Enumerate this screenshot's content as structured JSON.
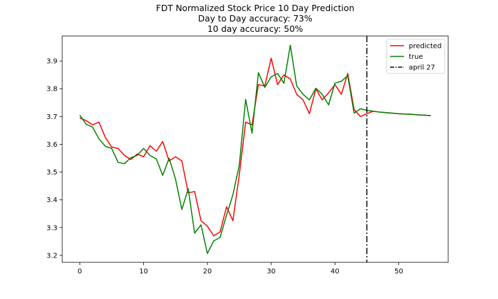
{
  "chart_data": {
    "type": "line",
    "title": [
      "FDT Normalized Stock Price 10 Day Prediction",
      "Day to Day accuracy: 73%",
      "10 day accuracy: 50%"
    ],
    "xlim": [
      -2.75,
      57.75
    ],
    "ylim": [
      3.175,
      3.99
    ],
    "xticks": [
      0,
      10,
      20,
      30,
      40,
      50
    ],
    "yticks": [
      3.2,
      3.3,
      3.4,
      3.5,
      3.6,
      3.7,
      3.8,
      3.9
    ],
    "grid": false,
    "legend_position": "upper-right",
    "series": [
      {
        "name": "predicted",
        "color": "#ff0000",
        "x": [
          0,
          1,
          2,
          3,
          4,
          5,
          6,
          7,
          8,
          9,
          10,
          11,
          12,
          13,
          14,
          15,
          16,
          17,
          18,
          19,
          20,
          21,
          22,
          23,
          24,
          25,
          26,
          27,
          28,
          29,
          30,
          31,
          32,
          33,
          34,
          35,
          36,
          37,
          38,
          39,
          40,
          41,
          42,
          43,
          44,
          45,
          46,
          47,
          48,
          49,
          50,
          51,
          52,
          53,
          54,
          55
        ],
        "y": [
          3.695,
          3.685,
          3.67,
          3.68,
          3.625,
          3.59,
          3.585,
          3.56,
          3.545,
          3.565,
          3.555,
          3.595,
          3.575,
          3.61,
          3.54,
          3.555,
          3.54,
          3.425,
          3.43,
          3.325,
          3.305,
          3.27,
          3.285,
          3.375,
          3.325,
          3.49,
          3.68,
          3.67,
          3.815,
          3.81,
          3.91,
          3.815,
          3.85,
          3.835,
          3.78,
          3.76,
          3.71,
          3.8,
          3.76,
          3.785,
          3.815,
          3.78,
          3.855,
          3.725,
          3.7,
          3.71,
          3.719,
          3.716,
          3.714,
          3.712,
          3.71,
          3.709,
          3.708,
          3.706,
          3.705,
          3.703
        ]
      },
      {
        "name": "true",
        "color": "#008000",
        "x": [
          0,
          1,
          2,
          3,
          4,
          5,
          6,
          7,
          8,
          9,
          10,
          11,
          12,
          13,
          14,
          15,
          16,
          17,
          18,
          19,
          20,
          21,
          22,
          23,
          24,
          25,
          26,
          27,
          28,
          29,
          30,
          31,
          32,
          33,
          34,
          35,
          36,
          37,
          38,
          39,
          40,
          41,
          42,
          43,
          44,
          45,
          46,
          47,
          48,
          49,
          50,
          51,
          52,
          53,
          54,
          55
        ],
        "y": [
          3.705,
          3.672,
          3.662,
          3.62,
          3.593,
          3.585,
          3.535,
          3.53,
          3.552,
          3.56,
          3.585,
          3.56,
          3.547,
          3.488,
          3.55,
          3.475,
          3.365,
          3.44,
          3.28,
          3.31,
          3.207,
          3.252,
          3.265,
          3.345,
          3.418,
          3.525,
          3.762,
          3.64,
          3.858,
          3.805,
          3.843,
          3.855,
          3.82,
          3.957,
          3.81,
          3.78,
          3.76,
          3.802,
          3.78,
          3.742,
          3.82,
          3.827,
          3.847,
          3.712,
          3.728,
          3.722,
          3.719,
          3.716,
          3.714,
          3.712,
          3.71,
          3.709,
          3.708,
          3.706,
          3.705,
          3.703
        ]
      }
    ],
    "vline": {
      "name": "april 27",
      "x": 45,
      "color": "#000000",
      "style": "dash-dot"
    }
  }
}
